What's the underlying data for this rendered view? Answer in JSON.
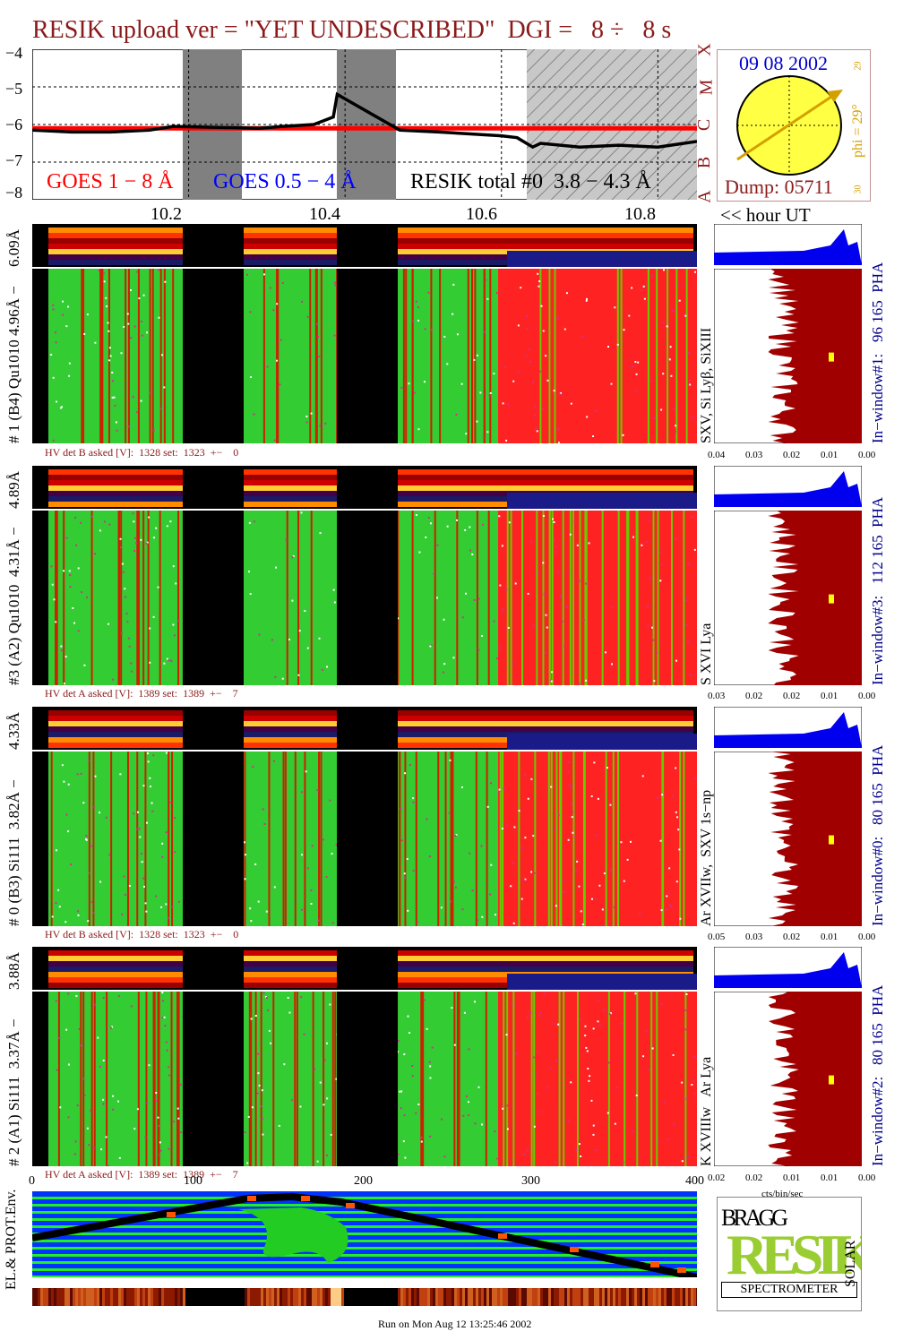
{
  "title": "RESIK upload ver = \"YET UNDESCRIBED\"  DGI =   8 ÷   8 s",
  "goes": {
    "ylabels": [
      "−4",
      "−5",
      "−6",
      "−7",
      "−8"
    ],
    "class_labels": [
      "X",
      "M",
      "C",
      "B",
      "A"
    ],
    "legend_1_8": "GOES 1 − 8 Å",
    "legend_05_4": "GOES 0.5 − 4 Å",
    "legend_resik": "RESIK total #0  3.8 − 4.3 Å",
    "colors": {
      "goes_long": "#ff0000",
      "goes_short": "#0000ff",
      "resik": "#000000",
      "gap": "#808080",
      "hatch": "#b0b0b0"
    }
  },
  "sun": {
    "date": "09 08 2002",
    "phi_label": "phi = 29°",
    "phi_small_top": "29",
    "phi_small_bottom": "30",
    "dump": "Dump: 05711",
    "color_disk": "#ffff44",
    "color_arrow": "#d4a000"
  },
  "time_axis": {
    "ticks": [
      "10.2",
      "10.4",
      "10.6",
      "10.8"
    ],
    "unit_label": "<< hour UT"
  },
  "panels": [
    {
      "pha_label": "6.09Å",
      "left_label": "# 1 (B4) Qu1010 4.96Å −",
      "lines_label": "SXV, Si Lyβ, SiXIII",
      "inwindow": "In−window#1:   96 165  PHA",
      "hv": "HV det B asked [V]:  1328 set:  1323  +−    0",
      "pha_ticks": [
        "0.04",
        "0.03",
        "0.02",
        "0.01",
        "0.00"
      ]
    },
    {
      "pha_label": "4.89Å",
      "left_label": "#3 (A2) Qu1010  4.31Å −",
      "lines_label": "S XVI Lya",
      "inwindow": "In−window#3:   112 165  PHA",
      "hv": "HV det A asked [V]:  1389 set:  1389  +−    7",
      "pha_ticks": [
        "0.03",
        "0.02",
        "0.02",
        "0.01",
        "0.00"
      ]
    },
    {
      "pha_label": "4.33Å",
      "left_label": "# 0 (B3) Si111  3.82Å −",
      "lines_label": "Ar XVIIw,  SXV 1s−np",
      "inwindow": "In−window#0:   80 165  PHA",
      "hv": "HV det B asked [V]:  1328 set:  1323  +−    0",
      "pha_ticks": [
        "0.05",
        "0.03",
        "0.02",
        "0.01",
        "0.00"
      ]
    },
    {
      "pha_label": "3.88Å",
      "left_label": "# 2 (A1) Si111  3.37Å −",
      "lines_label": "K XVIIIw   Ar Lya",
      "inwindow": "In−window#2:   80 165  PHA",
      "hv": "HV det A asked [V]:  1389 set:  1389  +−    7",
      "pha_ticks": [
        "0.02",
        "0.02",
        "0.01",
        "0.01",
        "0.00"
      ]
    }
  ],
  "bottom_axis": {
    "ticks": [
      "0",
      "100",
      "200",
      "300",
      "400"
    ],
    "pha_unit": "cts/bin/sec"
  },
  "env_label": "EL.& PROT.Env.",
  "logo": {
    "bragg": "BRAGG",
    "resik": "RESIK",
    "solar": "SOLAR",
    "spectrometer": "SPECTROMETER"
  },
  "footer": "Run on Mon Aug 12 13:25:46 2002",
  "chart_data": {
    "type": "line",
    "title": "RESIK upload ver = \"YET UNDESCRIBED\"  DGI =   8 ÷   8 s",
    "xlabel": "<< hour UT",
    "x_ticks": [
      10.2,
      10.4,
      10.6,
      10.8
    ],
    "ylabel": "",
    "ylim": [
      -8,
      -4
    ],
    "xlim": [
      10.0,
      10.85
    ],
    "series": [
      {
        "name": "GOES 1 − 8 Å",
        "x": [
          10.0,
          10.85
        ],
        "values": [
          -6.1,
          -6.1
        ]
      },
      {
        "name": "RESIK total #0  3.8 − 4.3 Å",
        "x": [
          10.0,
          10.05,
          10.1,
          10.15,
          10.18,
          10.29,
          10.32,
          10.36,
          10.385,
          10.39,
          10.47,
          10.52,
          10.56,
          10.6,
          10.62,
          10.64,
          10.65,
          10.7,
          10.75,
          10.8,
          10.85
        ],
        "values": [
          -6.15,
          -6.2,
          -6.2,
          -6.15,
          -6.05,
          -6.1,
          -6.05,
          -6.0,
          -5.8,
          -5.2,
          -6.15,
          -6.2,
          -6.25,
          -6.3,
          -6.35,
          -6.6,
          -6.5,
          -6.6,
          -6.55,
          -6.6,
          -6.45
        ]
      }
    ]
  }
}
